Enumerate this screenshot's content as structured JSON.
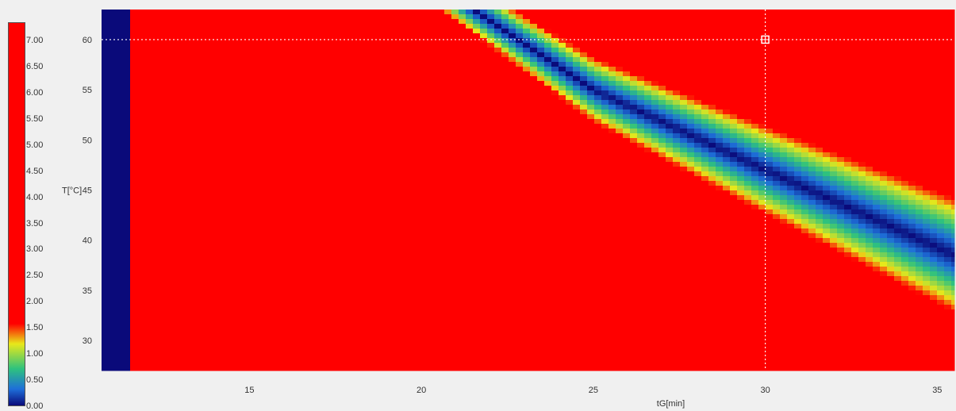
{
  "chart_data": {
    "type": "heatmap",
    "title": "",
    "xlabel": "tG[min]",
    "ylabel": "T[°C]",
    "xlim": [
      10.7,
      35.5
    ],
    "ylim": [
      27.0,
      63.0
    ],
    "x_ticks": [
      "15",
      "20",
      "25",
      "30",
      "35"
    ],
    "y_ticks": [
      "30",
      "35",
      "40",
      "45",
      "50",
      "55",
      "60"
    ],
    "colorbar": {
      "min": 0.0,
      "max": 7.0,
      "ticks": [
        "0.00",
        "0.50",
        "1.00",
        "1.50",
        "2.00",
        "2.50",
        "3.00",
        "3.50",
        "4.00",
        "4.50",
        "5.00",
        "5.50",
        "6.00",
        "6.50",
        "7.00"
      ],
      "colors": {
        "low": "#0a0a7a",
        "mid_low": "#1e6fd9",
        "mid": "#2ec27e",
        "mid_high": "#e8e81a",
        "high": "#ff0000"
      }
    },
    "valley_center_line": [
      {
        "x": 21.5,
        "y": 63.0
      },
      {
        "x": 25.0,
        "y": 55.0
      },
      {
        "x": 30.0,
        "y": 47.0
      },
      {
        "x": 35.5,
        "y": 38.5
      }
    ],
    "valley_half_width_value_range": 1.5,
    "upper_left_band": {
      "x_start": 10.7,
      "x_end": 13.5,
      "y_at_start": 59.0
    },
    "cursor": {
      "x": 30.0,
      "y": 60.0
    }
  }
}
